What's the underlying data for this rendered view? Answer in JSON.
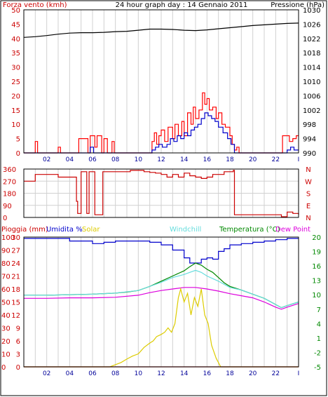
{
  "chart_data": [
    {
      "type": "line",
      "panel": "wind-pressure",
      "title": "24 hour graph day : 14 Gennaio 2011",
      "ylabel_left": "Forza vento (kmh)",
      "ylabel_right": "Pressione (hPa)",
      "ylim_left": [
        0,
        50
      ],
      "ylim_right": [
        990,
        1030
      ],
      "y_ticks_left": [
        "0",
        "5",
        "10",
        "15",
        "20",
        "25",
        "30",
        "35",
        "40",
        "45",
        "50"
      ],
      "y_ticks_right": [
        "990",
        "994",
        "998",
        "1002",
        "1006",
        "1010",
        "1014",
        "1018",
        "1022",
        "1026",
        "1030"
      ],
      "x_ticks": [
        "02",
        "04",
        "06",
        "08",
        "10",
        "12",
        "14",
        "16",
        "18",
        "20",
        "22",
        "I"
      ],
      "xlim": [
        0,
        24
      ],
      "grid": true,
      "colors": {
        "wind_gust": "#ff0000",
        "wind_avg": "#0000cc",
        "pressure": "#000000"
      },
      "series": [
        {
          "axis": "left-wind",
          "color": "#ff0000",
          "x": [
            0.0,
            0.8,
            1.0,
            1.2,
            2.6,
            3.0,
            3.2,
            4.7,
            4.8,
            5.2,
            5.6,
            5.8,
            6.2,
            6.4,
            6.8,
            7.0,
            7.3,
            7.7,
            7.9,
            10.8,
            11.2,
            11.4,
            11.6,
            11.8,
            12.0,
            12.3,
            12.6,
            13.0,
            13.2,
            13.5,
            13.8,
            14.0,
            14.3,
            14.6,
            14.8,
            15.0,
            15.3,
            15.6,
            15.8,
            16.0,
            16.2,
            16.5,
            16.8,
            17.0,
            17.3,
            17.6,
            18.0,
            18.2,
            18.4,
            18.6,
            18.8,
            22.3,
            22.6,
            22.9,
            23.2,
            23.5,
            23.8,
            24.0
          ],
          "values": [
            0,
            0,
            4,
            0,
            0,
            2,
            0,
            0,
            5,
            5,
            0,
            6,
            2,
            6,
            0,
            5,
            0,
            4,
            0,
            0,
            4,
            7,
            3,
            6,
            8,
            4,
            9,
            5,
            10,
            6,
            11,
            6,
            14,
            10,
            16,
            12,
            15,
            21,
            17,
            19,
            15,
            16,
            12,
            14,
            10,
            9,
            6,
            3,
            1,
            2,
            0,
            0,
            6,
            6,
            4,
            5,
            6,
            6
          ]
        },
        {
          "axis": "left-wind",
          "color": "#0000cc",
          "x": [
            0.0,
            5.5,
            5.8,
            6.1,
            6.4,
            10.8,
            11.2,
            11.5,
            11.8,
            12.1,
            12.5,
            12.8,
            13.1,
            13.4,
            13.7,
            14.0,
            14.3,
            14.6,
            14.9,
            15.2,
            15.5,
            15.8,
            16.1,
            16.4,
            16.7,
            17.0,
            17.4,
            17.8,
            18.1,
            18.4,
            22.7,
            23.0,
            23.3,
            23.6,
            24.0
          ],
          "values": [
            0,
            0,
            2,
            0,
            0,
            0,
            1,
            2,
            3,
            2,
            3,
            5,
            4,
            6,
            5,
            7,
            6,
            8,
            9,
            10,
            12,
            14,
            13,
            12,
            11,
            9,
            7,
            5,
            3,
            0,
            0,
            1,
            2,
            1,
            1
          ]
        },
        {
          "axis": "right-pressure",
          "color": "#000000",
          "x": [
            0,
            1,
            2,
            3,
            4,
            5,
            6,
            7,
            8,
            9,
            10,
            11,
            12,
            13,
            14,
            15,
            16,
            17,
            18,
            19,
            20,
            21,
            22,
            23,
            24
          ],
          "values": [
            1022.3,
            1022.5,
            1022.8,
            1023.2,
            1023.5,
            1023.6,
            1023.6,
            1023.7,
            1023.9,
            1024.0,
            1024.3,
            1024.6,
            1024.6,
            1024.5,
            1024.3,
            1024.2,
            1024.4,
            1024.7,
            1025.0,
            1025.3,
            1025.6,
            1025.8,
            1026.0,
            1026.2,
            1026.3
          ]
        }
      ]
    },
    {
      "type": "line",
      "panel": "wind-direction",
      "y_ticks_left": [
        "0",
        "90",
        "180",
        "270",
        "360"
      ],
      "y_ticks_right": [
        "N",
        "E",
        "S",
        "W",
        "N"
      ],
      "ylim": [
        0,
        360
      ],
      "xlim": [
        0,
        24
      ],
      "grid": true,
      "series": [
        {
          "name": "",
          "color": "#cc0000",
          "x": [
            0.0,
            0.8,
            1.0,
            2.5,
            3.0,
            4.5,
            4.6,
            4.7,
            4.8,
            5.0,
            5.2,
            5.5,
            5.7,
            6.0,
            6.2,
            6.5,
            6.7,
            6.9,
            7.1,
            9.0,
            9.3,
            10.5,
            11.0,
            11.5,
            12.0,
            12.5,
            13.0,
            13.5,
            14.0,
            14.5,
            15.0,
            15.5,
            16.0,
            16.5,
            17.0,
            17.5,
            18.0,
            18.3,
            18.4,
            19.0,
            20.0,
            21.0,
            22.0,
            22.5,
            23.0,
            23.5,
            24.0
          ],
          "values": [
            270,
            270,
            320,
            320,
            300,
            300,
            120,
            30,
            30,
            340,
            340,
            30,
            340,
            340,
            20,
            20,
            20,
            340,
            340,
            340,
            350,
            340,
            335,
            330,
            320,
            300,
            320,
            300,
            330,
            310,
            300,
            290,
            300,
            320,
            320,
            340,
            340,
            350,
            20,
            20,
            20,
            20,
            20,
            5,
            40,
            30,
            20
          ]
        }
      ]
    },
    {
      "type": "line",
      "panel": "humidity-temperature",
      "labels": [
        "Pioggia (mm)",
        "Umidita %",
        "Solar",
        "Windchill",
        "Temperatura (°C)",
        "Dew Point"
      ],
      "label_colors": [
        "#cc0000",
        "#0000cc",
        "#ddcc00",
        "#66dddd",
        "#008800",
        "#dd00dd"
      ],
      "y_ticks_left_rain": [
        "0",
        "10",
        "20",
        "30",
        "40",
        "50",
        "60",
        "70",
        "80",
        "90",
        "100"
      ],
      "y_ticks_left_humidity": [
        "0",
        "3",
        "6",
        "9",
        "12",
        "15",
        "18",
        "21",
        "24",
        "27",
        "30"
      ],
      "y_ticks_right_temp": [
        "-5",
        "-2",
        "1",
        "4",
        "7",
        "10",
        "13",
        "16",
        "19",
        "20"
      ],
      "ylim_humidity": [
        0,
        100
      ],
      "ylim_temp": [
        -5,
        20
      ],
      "ylim_solar": [
        0,
        30
      ],
      "xlim": [
        0,
        24
      ],
      "grid": true,
      "series": [
        {
          "axis": "humidity",
          "color": "#0000cc",
          "x": [
            0,
            2,
            4,
            6,
            7,
            8,
            9,
            10,
            11,
            12,
            13,
            14,
            14.5,
            15,
            15.5,
            16,
            16.5,
            17,
            17.5,
            18,
            19,
            20,
            21,
            22,
            23,
            24
          ],
          "values": [
            99,
            99,
            97,
            95,
            96,
            97,
            97,
            97,
            96,
            94,
            90,
            84,
            80,
            80,
            83,
            84,
            83,
            89,
            91,
            94,
            95,
            96,
            97,
            98,
            99,
            99
          ]
        },
        {
          "axis": "temp",
          "color": "#008800",
          "x": [
            0,
            2,
            4,
            6,
            8,
            9,
            10,
            11,
            12,
            13,
            14,
            14.5,
            15,
            15.5,
            16,
            16.5,
            17,
            17.5,
            18,
            19,
            20,
            21,
            22,
            22.5,
            23,
            24
          ],
          "values": [
            8.8,
            8.8,
            8.9,
            9.0,
            9.2,
            9.4,
            9.7,
            10.5,
            11.5,
            12.5,
            13.5,
            14.3,
            15.0,
            14.6,
            13.8,
            13.2,
            12.2,
            11.2,
            10.5,
            9.8,
            9.0,
            8.2,
            7.0,
            6.4,
            6.8,
            7.5
          ]
        },
        {
          "axis": "temp",
          "color": "#66dddd",
          "x": [
            0,
            2,
            4,
            6,
            8,
            10,
            11,
            12,
            13,
            14,
            14.5,
            15,
            15.5,
            16,
            16.5,
            17,
            17.5,
            18,
            19,
            20,
            21,
            22,
            22.5,
            23,
            24
          ],
          "values": [
            8.8,
            8.8,
            8.9,
            9.0,
            9.2,
            9.7,
            10.5,
            11.3,
            12.2,
            12.8,
            13.2,
            13.6,
            13.2,
            12.5,
            12.0,
            11.5,
            10.9,
            10.3,
            9.8,
            9.0,
            8.2,
            7.0,
            6.4,
            6.8,
            7.5
          ]
        },
        {
          "axis": "temp",
          "color": "#dd00dd",
          "x": [
            0,
            2,
            4,
            6,
            8,
            10,
            11,
            12,
            13,
            14,
            15,
            16,
            17,
            18,
            19,
            20,
            21,
            22,
            22.5,
            23,
            24
          ],
          "values": [
            8.2,
            8.2,
            8.3,
            8.3,
            8.4,
            8.8,
            9.3,
            9.7,
            10.0,
            10.3,
            10.3,
            10.0,
            9.6,
            9.1,
            8.7,
            8.3,
            7.5,
            6.5,
            6.1,
            6.5,
            7.2
          ]
        },
        {
          "axis": "solar",
          "color": "#ddcc00",
          "x": [
            0,
            7.5,
            8.0,
            8.5,
            9.0,
            9.5,
            10.0,
            10.5,
            11.0,
            11.3,
            11.6,
            12.0,
            12.3,
            12.6,
            12.9,
            13.2,
            13.5,
            13.7,
            14.0,
            14.3,
            14.6,
            14.9,
            15.2,
            15.5,
            15.8,
            16.1,
            16.4,
            16.8,
            17.2,
            24
          ],
          "values": [
            0,
            0,
            0.5,
            1,
            1.8,
            2.5,
            3,
            4.5,
            5.5,
            6,
            7,
            7.5,
            8,
            9,
            8,
            10,
            16,
            18,
            15,
            17,
            12,
            16,
            14,
            18,
            12,
            10,
            5,
            2,
            0,
            0
          ]
        },
        {
          "axis": "rain",
          "color": "#cc0000",
          "x": [
            0,
            24
          ],
          "values": [
            0,
            0
          ]
        }
      ]
    }
  ]
}
